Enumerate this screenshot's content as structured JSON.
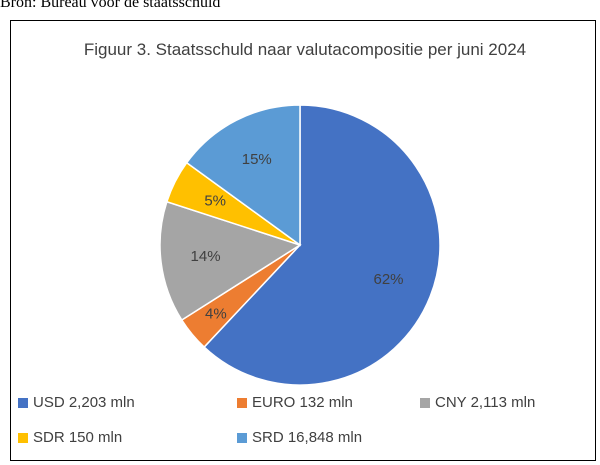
{
  "source": "Bron: Bureau voor de staatsschuld",
  "chart_data": {
    "type": "pie",
    "title": "Figuur 3. Staatsschuld naar valutacompositie per juni 2024",
    "categories": [
      "USD 2,203 mln",
      "EURO 132 mln",
      "CNY 2,113 mln",
      "SDR 150 mln",
      "SRD 16,848 mln"
    ],
    "values": [
      62,
      4,
      14,
      5,
      15
    ],
    "value_labels": [
      "62%",
      "4%",
      "14%",
      "5%",
      "15%"
    ],
    "colors": [
      "#4472c4",
      "#ed7d31",
      "#a5a5a5",
      "#ffc000",
      "#5b9bd5"
    ]
  }
}
